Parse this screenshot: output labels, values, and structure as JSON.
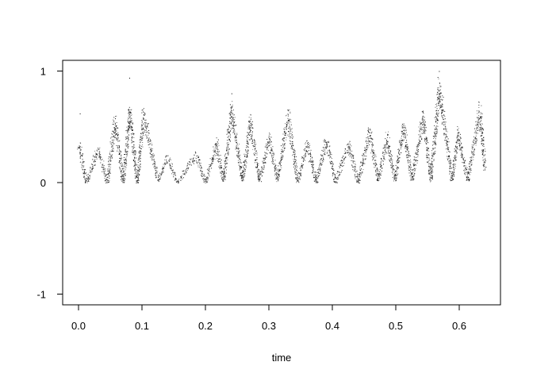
{
  "chart_data": {
    "type": "scatter",
    "title": "",
    "xlabel": "time",
    "ylabel": "",
    "xlim": [
      -0.025,
      0.665
    ],
    "ylim": [
      -1.1,
      1.1
    ],
    "x_ticks": [
      0.0,
      0.1,
      0.2,
      0.3,
      0.4,
      0.5,
      0.6
    ],
    "x_tick_labels": [
      "0.0",
      "0.1",
      "0.2",
      "0.3",
      "0.4",
      "0.5",
      "0.6"
    ],
    "y_ticks": [
      -1,
      0,
      1
    ],
    "y_tick_labels": [
      "-1",
      "0",
      "1"
    ],
    "grid": false,
    "marker_color": "#000000",
    "series": [
      {
        "x": [
          0.0,
          0.012,
          0.03,
          0.045,
          0.057,
          0.07,
          0.08,
          0.092,
          0.102,
          0.125,
          0.14,
          0.155,
          0.185,
          0.2,
          0.217,
          0.228,
          0.241,
          0.258,
          0.27,
          0.285,
          0.3,
          0.313,
          0.33,
          0.345,
          0.36,
          0.374,
          0.39,
          0.405,
          0.425,
          0.44,
          0.458,
          0.472,
          0.486,
          0.498,
          0.512,
          0.525,
          0.543,
          0.555,
          0.568,
          0.588,
          0.598,
          0.613,
          0.632,
          0.64
        ],
        "y": [
          0.35,
          0.0,
          0.3,
          0.0,
          0.55,
          0.0,
          0.65,
          0.0,
          0.6,
          0.02,
          0.22,
          0.0,
          0.25,
          0.0,
          0.35,
          0.02,
          0.65,
          0.02,
          0.55,
          0.02,
          0.4,
          0.02,
          0.6,
          0.01,
          0.35,
          0.0,
          0.38,
          0.0,
          0.35,
          0.0,
          0.45,
          0.02,
          0.4,
          0.02,
          0.5,
          0.02,
          0.6,
          0.02,
          0.85,
          0.02,
          0.45,
          0.02,
          0.65,
          0.12
        ]
      }
    ],
    "outliers": {
      "x": [
        0.08,
        0.241,
        0.568,
        0.002
      ],
      "y": [
        0.94,
        0.8,
        1.0,
        0.62
      ]
    }
  }
}
